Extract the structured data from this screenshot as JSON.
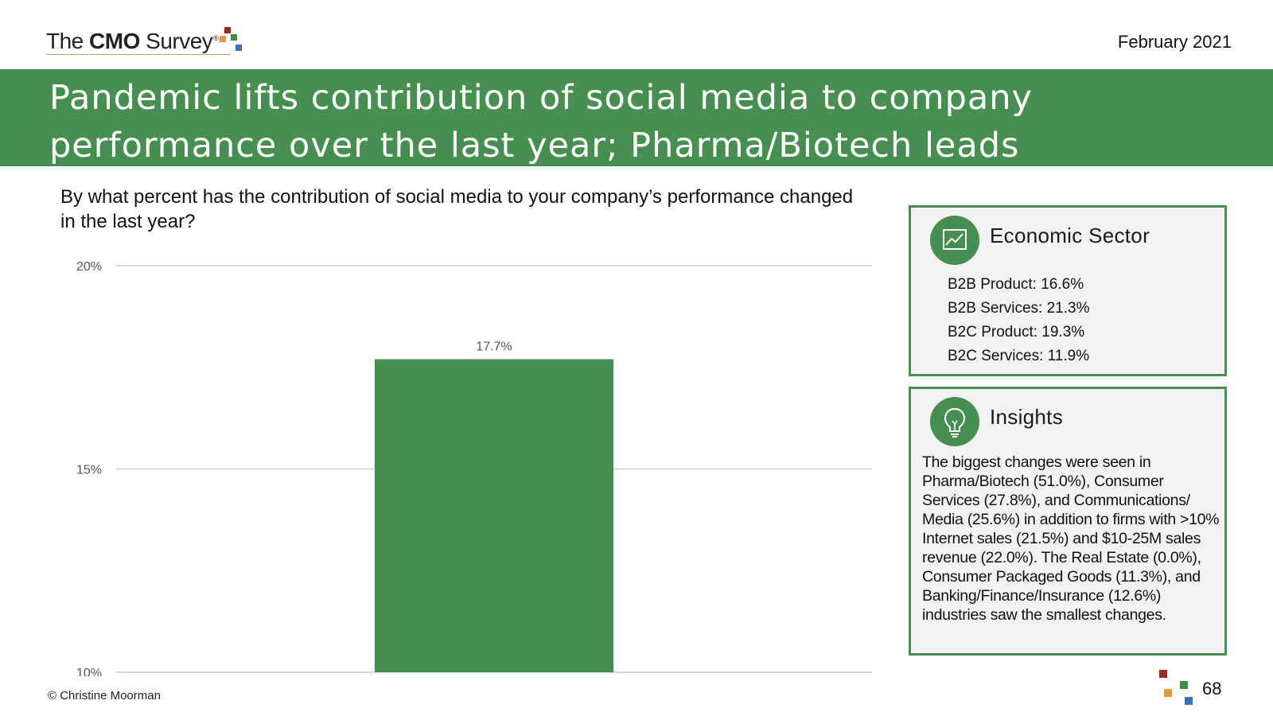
{
  "logo": {
    "prefix": "The ",
    "bold": "CMO",
    "suffix": " Survey",
    "registered": "®",
    "square_colors": [
      "#9b2a1f",
      "#e59a3a",
      "#3f8c4a",
      "#3a72b5"
    ]
  },
  "date": "February 2021",
  "banner": {
    "title_line1": "Pandemic lifts contribution of social media to company",
    "title_line2": "performance over the last year; Pharma/Biotech leads",
    "color": "#468f50"
  },
  "question": "By what percent has the contribution of social media to your company’s performance changed in the last year?",
  "chart_data": {
    "type": "bar",
    "categories": [
      ""
    ],
    "values": [
      17.7
    ],
    "data_labels": [
      "17.7%"
    ],
    "ylim": [
      10,
      20
    ],
    "yticks": [
      10,
      15,
      20
    ],
    "ytick_labels": [
      "10%",
      "15%",
      "20%"
    ],
    "title": "",
    "xlabel": "",
    "ylabel": "",
    "grid": true,
    "bar_color": "#468f50",
    "grid_color": "#d9d9d9"
  },
  "economic_sector": {
    "heading": "Economic Sector",
    "icon": "line-chart-icon",
    "items": [
      "B2B Product: 16.6%",
      "B2B Services: 21.3%",
      "B2C Product: 19.3%",
      "B2C Services: 11.9%"
    ]
  },
  "insights": {
    "heading": "Insights",
    "icon": "lightbulb-icon",
    "text": "The biggest changes were seen in Pharma/Biotech (51.0%), Consumer Services (27.8%), and Communications/ Media (25.6%) in addition to firms with >10% Internet sales (21.5%) and $10-25M sales revenue (22.0%). The Real Estate (0.0%), Consumer Packaged Goods (11.3%), and Banking/Finance/Insurance (12.6%) industries saw the smallest changes."
  },
  "footer": {
    "copyright": "© Christine Moorman",
    "page_number": "68"
  }
}
